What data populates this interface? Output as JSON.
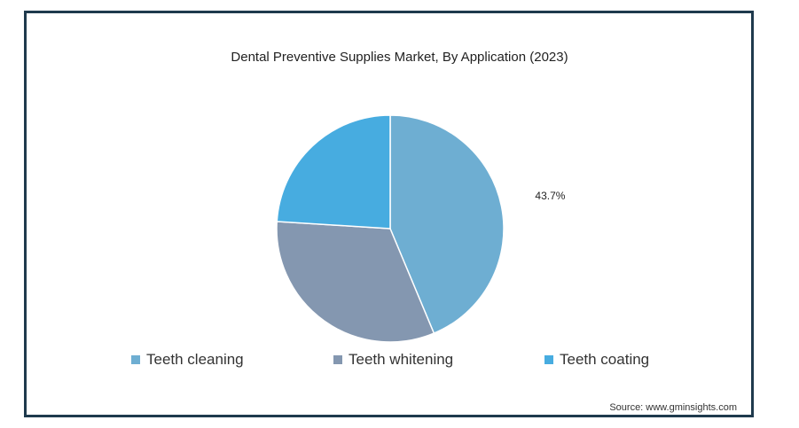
{
  "chart_data": {
    "type": "pie",
    "title": "Dental Preventive Supplies Market, By Application (2023)",
    "slices": [
      {
        "label": "Teeth cleaning",
        "value": 43.7,
        "color": "#6eaed2",
        "data_label": "43.7%"
      },
      {
        "label": "Teeth whitening",
        "value": 32.3,
        "color": "#8497b0",
        "data_label": ""
      },
      {
        "label": "Teeth coating",
        "value": 24.0,
        "color": "#47ace0",
        "data_label": ""
      }
    ],
    "legend_position": "bottom",
    "source": "Source: www.gminsights.com"
  }
}
